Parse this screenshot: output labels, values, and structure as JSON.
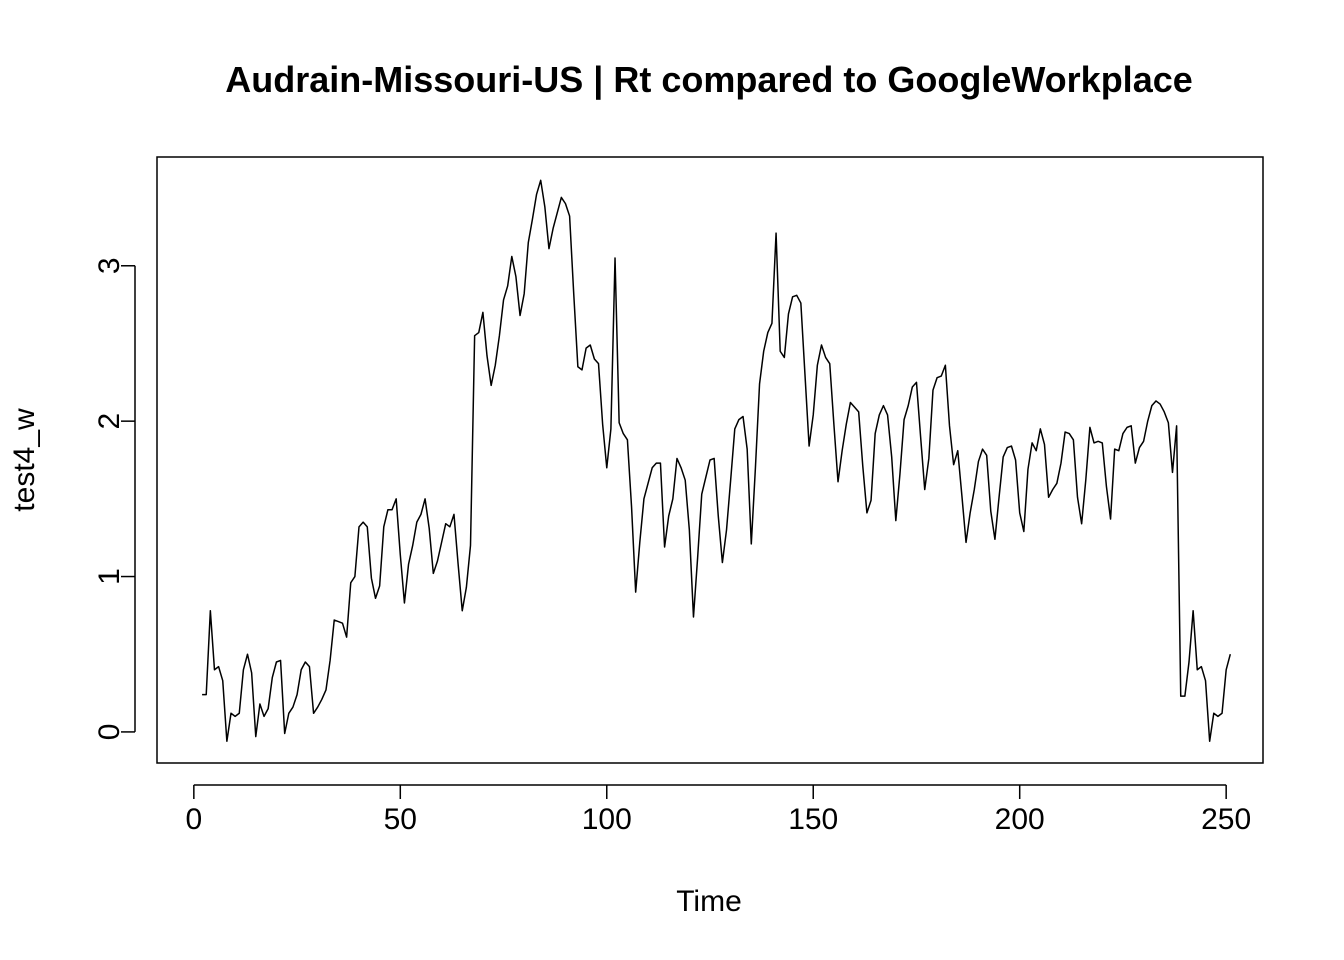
{
  "chart_data": {
    "type": "line",
    "title": "Audrain-Missouri-US | Rt compared to GoogleWorkplace",
    "xlabel": "Time",
    "ylabel": "test4_w",
    "xlim": [
      -8.92,
      258.92
    ],
    "ylim": [
      -0.2,
      3.7
    ],
    "xticks": [
      0,
      50,
      100,
      150,
      200,
      250
    ],
    "yticks": [
      0,
      1,
      2,
      3
    ],
    "grid": false,
    "line_color": "#000000",
    "series": [
      {
        "x_start": 2,
        "x_step": 1,
        "values": [
          0.24,
          0.24,
          0.78,
          0.4,
          0.42,
          0.33,
          -0.06,
          0.12,
          0.1,
          0.12,
          0.4,
          0.5,
          0.38,
          -0.03,
          0.18,
          0.1,
          0.15,
          0.35,
          0.45,
          0.46,
          -0.01,
          0.12,
          0.16,
          0.24,
          0.4,
          0.45,
          0.42,
          0.12,
          0.16,
          0.21,
          0.27,
          0.46,
          0.72,
          0.71,
          0.7,
          0.61,
          0.96,
          1.0,
          1.32,
          1.35,
          1.32,
          0.99,
          0.86,
          0.94,
          1.32,
          1.43,
          1.43,
          1.5,
          1.14,
          0.83,
          1.08,
          1.2,
          1.35,
          1.4,
          1.5,
          1.31,
          1.02,
          1.1,
          1.22,
          1.34,
          1.32,
          1.4,
          1.08,
          0.78,
          0.93,
          1.2,
          2.55,
          2.57,
          2.7,
          2.42,
          2.23,
          2.36,
          2.55,
          2.78,
          2.87,
          3.06,
          2.93,
          2.68,
          2.82,
          3.15,
          3.3,
          3.46,
          3.55,
          3.38,
          3.11,
          3.24,
          3.34,
          3.44,
          3.4,
          3.32,
          2.82,
          2.35,
          2.33,
          2.47,
          2.49,
          2.4,
          2.37,
          1.98,
          1.7,
          1.95,
          3.05,
          1.99,
          1.92,
          1.88,
          1.45,
          0.9,
          1.22,
          1.5,
          1.6,
          1.7,
          1.73,
          1.73,
          1.19,
          1.39,
          1.5,
          1.76,
          1.7,
          1.62,
          1.3,
          0.74,
          1.12,
          1.53,
          1.64,
          1.75,
          1.76,
          1.39,
          1.09,
          1.3,
          1.62,
          1.95,
          2.01,
          2.03,
          1.82,
          1.21,
          1.7,
          2.24,
          2.45,
          2.57,
          2.63,
          3.21,
          2.45,
          2.41,
          2.69,
          2.8,
          2.81,
          2.76,
          2.3,
          1.84,
          2.04,
          2.36,
          2.49,
          2.41,
          2.37,
          1.98,
          1.61,
          1.81,
          1.98,
          2.12,
          2.09,
          2.06,
          1.71,
          1.41,
          1.49,
          1.92,
          2.04,
          2.1,
          2.04,
          1.77,
          1.36,
          1.66,
          2.01,
          2.1,
          2.22,
          2.25,
          1.9,
          1.56,
          1.76,
          2.2,
          2.28,
          2.29,
          2.36,
          1.97,
          1.72,
          1.81,
          1.52,
          1.22,
          1.41,
          1.56,
          1.74,
          1.82,
          1.78,
          1.42,
          1.24,
          1.51,
          1.77,
          1.83,
          1.84,
          1.75,
          1.41,
          1.29,
          1.69,
          1.86,
          1.81,
          1.95,
          1.85,
          1.51,
          1.56,
          1.6,
          1.73,
          1.93,
          1.92,
          1.88,
          1.51,
          1.34,
          1.62,
          1.96,
          1.86,
          1.87,
          1.86,
          1.58,
          1.37,
          1.82,
          1.81,
          1.92,
          1.96,
          1.97,
          1.73,
          1.83,
          1.87,
          2.0,
          2.1,
          2.13,
          2.11,
          2.06,
          1.99,
          1.67,
          1.97,
          0.23,
          0.23,
          0.45,
          0.78,
          0.4,
          0.42,
          0.33,
          -0.06,
          0.12,
          0.1,
          0.12,
          0.4,
          0.5
        ]
      }
    ]
  }
}
